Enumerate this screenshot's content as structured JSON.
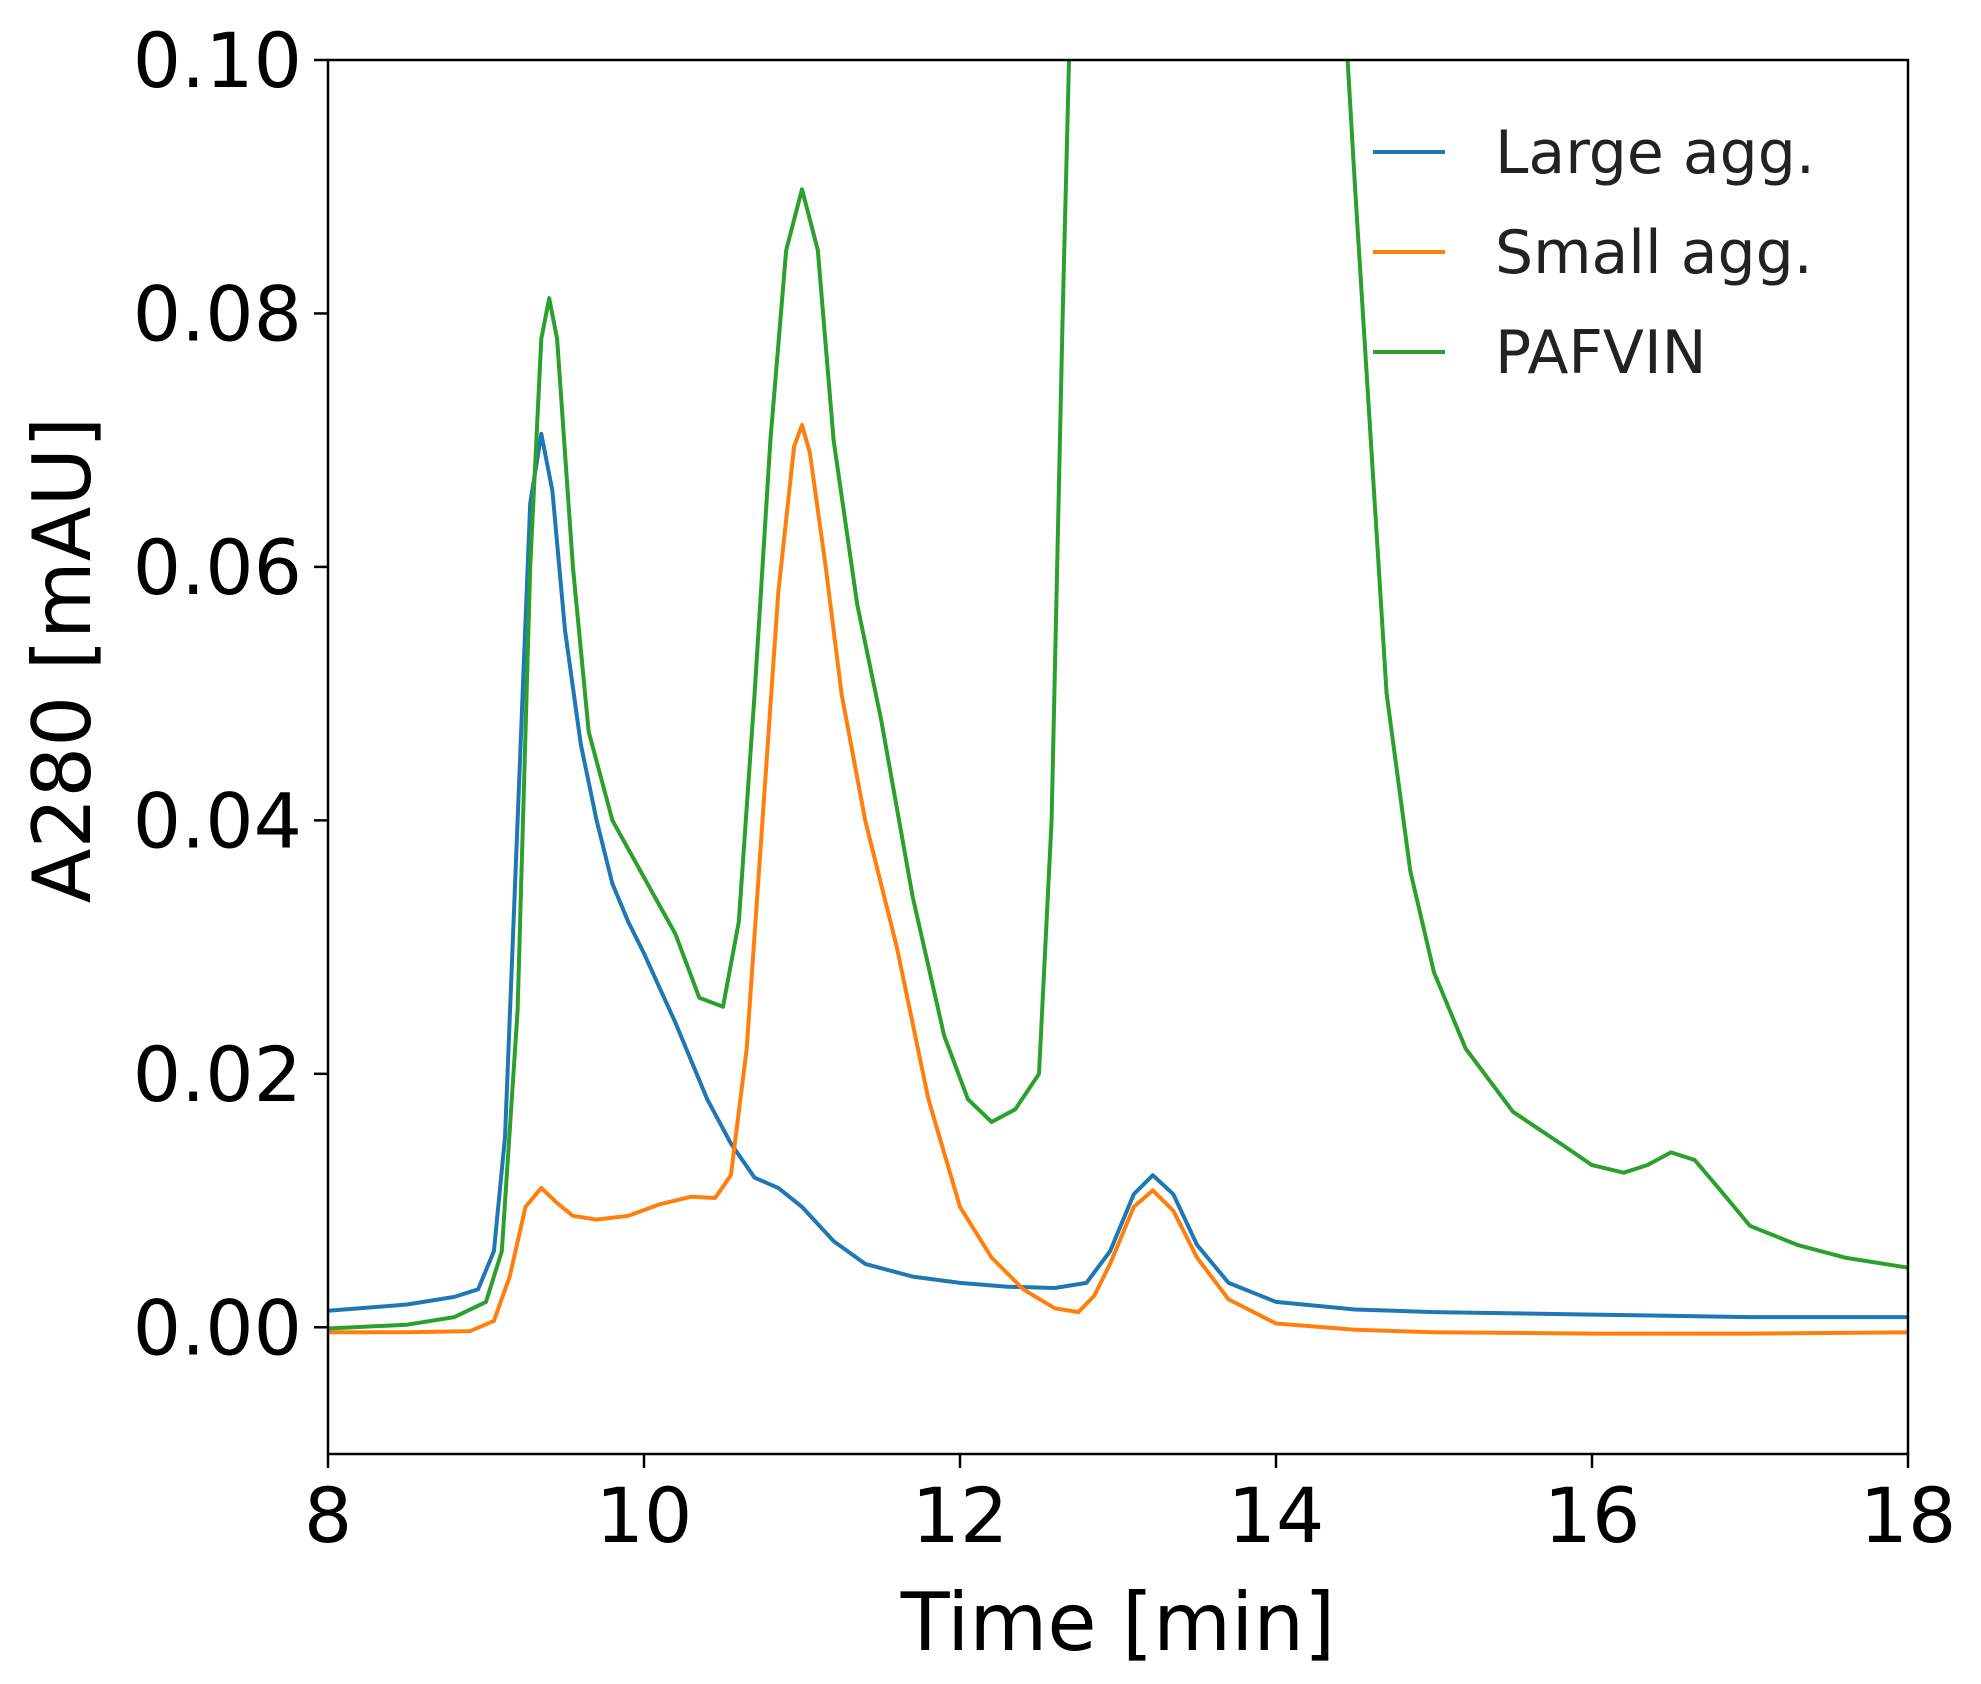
{
  "chart_data": {
    "type": "line",
    "title": "",
    "xlabel": "Time [min]",
    "ylabel": "A280 [mAU]",
    "xlim": [
      8,
      18
    ],
    "ylim": [
      -0.01,
      0.1
    ],
    "xticks": [
      "8",
      "10",
      "12",
      "14",
      "16",
      "18"
    ],
    "yticks": [
      "0.00",
      "0.02",
      "0.04",
      "0.06",
      "0.08",
      "0.10"
    ],
    "grid": false,
    "legend_position": "top-right",
    "series": [
      {
        "name": "Large agg.",
        "color": "#1f77b4",
        "points": [
          [
            8.0,
            0.0013
          ],
          [
            8.5,
            0.0018
          ],
          [
            8.8,
            0.0024
          ],
          [
            8.95,
            0.003
          ],
          [
            9.05,
            0.006
          ],
          [
            9.12,
            0.015
          ],
          [
            9.2,
            0.04
          ],
          [
            9.28,
            0.065
          ],
          [
            9.35,
            0.0705
          ],
          [
            9.42,
            0.066
          ],
          [
            9.5,
            0.055
          ],
          [
            9.6,
            0.046
          ],
          [
            9.7,
            0.04
          ],
          [
            9.8,
            0.035
          ],
          [
            9.9,
            0.032
          ],
          [
            10.0,
            0.0295
          ],
          [
            10.2,
            0.024
          ],
          [
            10.4,
            0.018
          ],
          [
            10.55,
            0.0145
          ],
          [
            10.7,
            0.0118
          ],
          [
            10.85,
            0.011
          ],
          [
            11.0,
            0.0095
          ],
          [
            11.2,
            0.0068
          ],
          [
            11.4,
            0.005
          ],
          [
            11.7,
            0.004
          ],
          [
            12.0,
            0.0035
          ],
          [
            12.3,
            0.0032
          ],
          [
            12.6,
            0.0031
          ],
          [
            12.8,
            0.0035
          ],
          [
            12.95,
            0.006
          ],
          [
            13.1,
            0.0105
          ],
          [
            13.22,
            0.012
          ],
          [
            13.35,
            0.0105
          ],
          [
            13.5,
            0.0065
          ],
          [
            13.7,
            0.0035
          ],
          [
            14.0,
            0.002
          ],
          [
            14.5,
            0.0014
          ],
          [
            15.0,
            0.0012
          ],
          [
            16.0,
            0.001
          ],
          [
            17.0,
            0.0008
          ],
          [
            18.0,
            0.0008
          ]
        ]
      },
      {
        "name": "Small agg.",
        "color": "#ff7f0e",
        "points": [
          [
            8.0,
            -0.0004
          ],
          [
            8.5,
            -0.0004
          ],
          [
            8.9,
            -0.0003
          ],
          [
            9.05,
            0.0005
          ],
          [
            9.15,
            0.004
          ],
          [
            9.25,
            0.0095
          ],
          [
            9.35,
            0.011
          ],
          [
            9.45,
            0.0098
          ],
          [
            9.55,
            0.0088
          ],
          [
            9.7,
            0.0085
          ],
          [
            9.9,
            0.0088
          ],
          [
            10.1,
            0.0097
          ],
          [
            10.3,
            0.0103
          ],
          [
            10.45,
            0.0102
          ],
          [
            10.55,
            0.012
          ],
          [
            10.65,
            0.022
          ],
          [
            10.75,
            0.04
          ],
          [
            10.85,
            0.058
          ],
          [
            10.95,
            0.0695
          ],
          [
            11.0,
            0.0712
          ],
          [
            11.05,
            0.069
          ],
          [
            11.15,
            0.06
          ],
          [
            11.25,
            0.05
          ],
          [
            11.4,
            0.04
          ],
          [
            11.6,
            0.03
          ],
          [
            11.8,
            0.018
          ],
          [
            12.0,
            0.0095
          ],
          [
            12.2,
            0.0055
          ],
          [
            12.4,
            0.003
          ],
          [
            12.6,
            0.0015
          ],
          [
            12.75,
            0.0012
          ],
          [
            12.85,
            0.0025
          ],
          [
            12.95,
            0.005
          ],
          [
            13.1,
            0.0095
          ],
          [
            13.22,
            0.0108
          ],
          [
            13.35,
            0.0092
          ],
          [
            13.5,
            0.0055
          ],
          [
            13.7,
            0.0022
          ],
          [
            14.0,
            0.0003
          ],
          [
            14.5,
            -0.0002
          ],
          [
            15.0,
            -0.0004
          ],
          [
            16.0,
            -0.0005
          ],
          [
            17.0,
            -0.0005
          ],
          [
            18.0,
            -0.0004
          ]
        ]
      },
      {
        "name": "PAFVIN",
        "color": "#2ca02c",
        "points": [
          [
            8.0,
            -0.0001
          ],
          [
            8.5,
            0.0002
          ],
          [
            8.8,
            0.0008
          ],
          [
            9.0,
            0.002
          ],
          [
            9.1,
            0.006
          ],
          [
            9.2,
            0.025
          ],
          [
            9.28,
            0.06
          ],
          [
            9.35,
            0.078
          ],
          [
            9.4,
            0.0812
          ],
          [
            9.45,
            0.078
          ],
          [
            9.55,
            0.06
          ],
          [
            9.65,
            0.047
          ],
          [
            9.8,
            0.04
          ],
          [
            10.0,
            0.0355
          ],
          [
            10.2,
            0.031
          ],
          [
            10.35,
            0.026
          ],
          [
            10.5,
            0.0253
          ],
          [
            10.6,
            0.032
          ],
          [
            10.7,
            0.05
          ],
          [
            10.8,
            0.07
          ],
          [
            10.9,
            0.085
          ],
          [
            11.0,
            0.0898
          ],
          [
            11.1,
            0.085
          ],
          [
            11.2,
            0.07
          ],
          [
            11.35,
            0.057
          ],
          [
            11.5,
            0.048
          ],
          [
            11.7,
            0.034
          ],
          [
            11.9,
            0.023
          ],
          [
            12.05,
            0.018
          ],
          [
            12.2,
            0.0162
          ],
          [
            12.35,
            0.0172
          ],
          [
            12.5,
            0.02
          ],
          [
            12.58,
            0.04
          ],
          [
            12.65,
            0.08
          ],
          [
            12.7,
            0.105
          ],
          [
            14.43,
            0.105
          ],
          [
            14.5,
            0.09
          ],
          [
            14.6,
            0.07
          ],
          [
            14.7,
            0.05
          ],
          [
            14.85,
            0.036
          ],
          [
            15.0,
            0.028
          ],
          [
            15.2,
            0.022
          ],
          [
            15.5,
            0.017
          ],
          [
            15.8,
            0.0145
          ],
          [
            16.0,
            0.0128
          ],
          [
            16.2,
            0.0122
          ],
          [
            16.35,
            0.0128
          ],
          [
            16.5,
            0.0138
          ],
          [
            16.65,
            0.0132
          ],
          [
            16.8,
            0.011
          ],
          [
            17.0,
            0.008
          ],
          [
            17.3,
            0.0065
          ],
          [
            17.6,
            0.0055
          ],
          [
            18.0,
            0.0047
          ]
        ]
      }
    ]
  }
}
